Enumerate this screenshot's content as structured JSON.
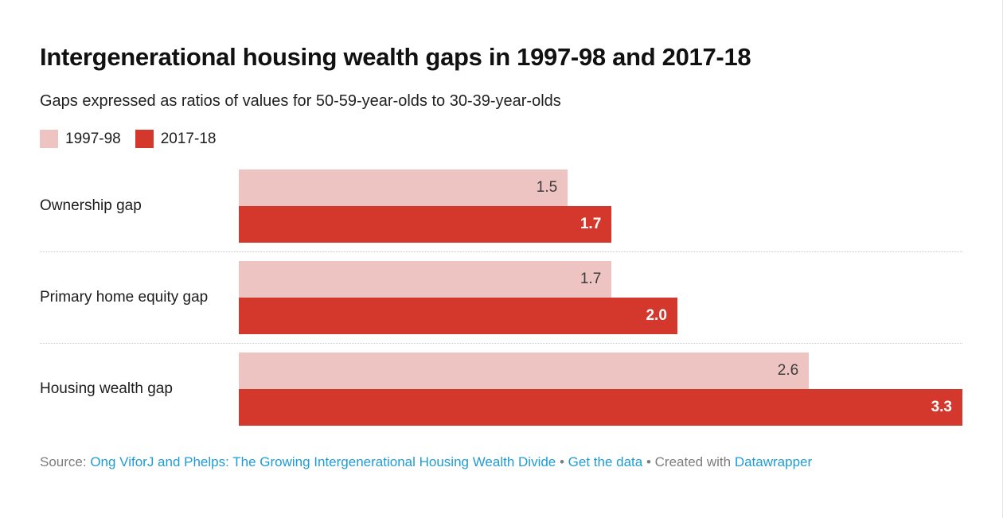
{
  "title": "Intergenerational housing wealth gaps in 1997-98 and 2017-18",
  "subtitle": "Gaps expressed as ratios of values for 50-59-year-olds to 30-39-year-olds",
  "legend": [
    {
      "label": "1997-98",
      "color": "#edc4c2"
    },
    {
      "label": "2017-18",
      "color": "#d4372c"
    }
  ],
  "chart_data": {
    "type": "bar",
    "orientation": "horizontal",
    "title": "Intergenerational housing wealth gaps in 1997-98 and 2017-18",
    "subtitle": "Gaps expressed as ratios of values for 50-59-year-olds to 30-39-year-olds",
    "categories": [
      "Ownership gap",
      "Primary home equity gap",
      "Housing wealth gap"
    ],
    "series": [
      {
        "name": "1997-98",
        "color": "#edc4c2",
        "values": [
          1.5,
          1.7,
          2.6
        ]
      },
      {
        "name": "2017-18",
        "color": "#d4372c",
        "values": [
          1.7,
          2.0,
          3.3
        ]
      }
    ],
    "xlim": [
      0,
      3.3
    ],
    "value_labels": "inside-end",
    "value_label_decimals": 1,
    "grid": false,
    "legend_position": "top-left",
    "row_separator": "dotted"
  },
  "footer": {
    "prefix": "Source: ",
    "source_link": "Ong ViforJ and Phelps: The Growing Intergenerational Housing Wealth Divide",
    "sep1": " • ",
    "data_link": "Get the data",
    "sep2": " • ",
    "created_with": "Created with ",
    "tool_link": "Datawrapper"
  },
  "colors": {
    "series_1997": "#edc4c2",
    "series_2017": "#d4372c",
    "title_text": "#111111",
    "body_text": "#1d1d1d",
    "value_on_pink": "#3c3c3c",
    "value_on_red": "#ffffff",
    "footer_text": "#7c7c7c",
    "link_blue": "#1e9cd3",
    "separator_line": "#c9c9c9",
    "page_edge": "#e4e4e4"
  }
}
